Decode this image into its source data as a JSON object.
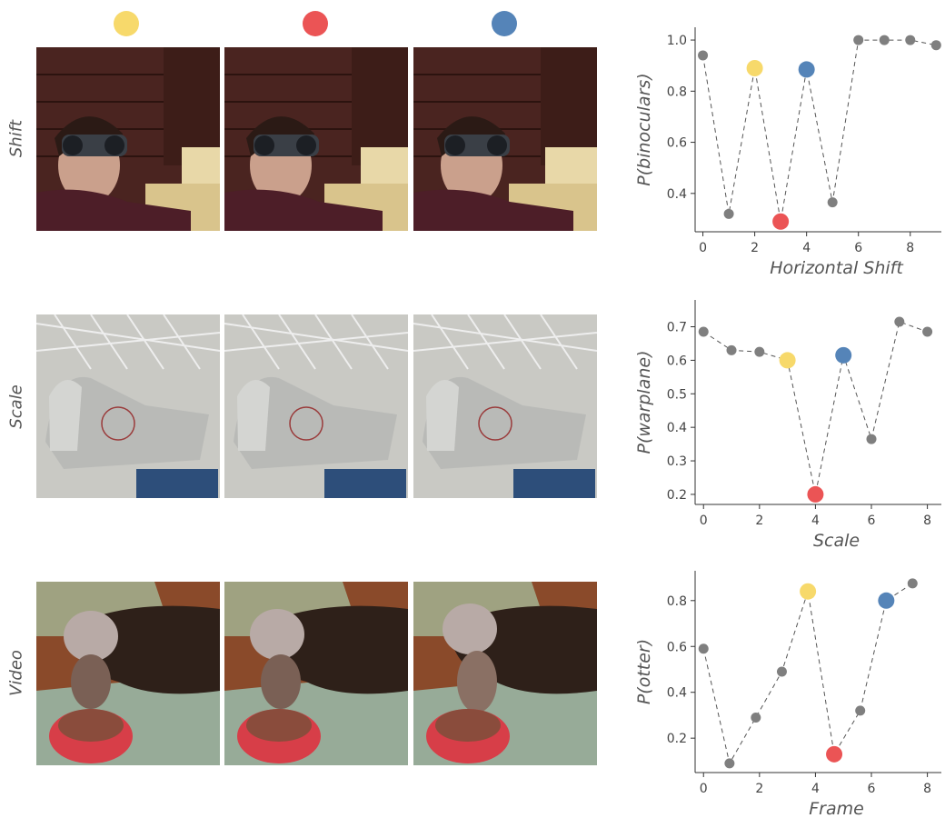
{
  "legend_colors": {
    "yellow": "#f7d96b",
    "red": "#eb5455",
    "blue": "#5584b8",
    "gray": "#7f7f7f"
  },
  "rows": [
    {
      "label": "Shift"
    },
    {
      "label": "Scale"
    },
    {
      "label": "Video"
    }
  ],
  "chart_data": [
    {
      "type": "scatter",
      "title": "",
      "xlabel": "Horizontal Shift",
      "ylabel": "P(binoculars)",
      "xlim": [
        -0.3,
        9.2
      ],
      "ylim": [
        0.25,
        1.05
      ],
      "xticks": [
        0,
        2,
        4,
        6,
        8
      ],
      "yticks": [
        0.4,
        0.6,
        0.8,
        1.0
      ],
      "ytick_labels": [
        "0.4",
        "0.6",
        "0.8",
        "1.0"
      ],
      "x": [
        0,
        1,
        2,
        3,
        4,
        5,
        6,
        7,
        8,
        9
      ],
      "y": [
        0.94,
        0.32,
        0.89,
        0.29,
        0.885,
        0.365,
        1.0,
        1.0,
        1.0,
        0.98
      ],
      "highlights": {
        "yellow": 2,
        "red": 3,
        "blue": 4
      },
      "grid": false,
      "line_style": "dashed"
    },
    {
      "type": "scatter",
      "title": "",
      "xlabel": "Scale",
      "ylabel": "P(warplane)",
      "xlim": [
        -0.3,
        8.5
      ],
      "ylim": [
        0.17,
        0.78
      ],
      "xticks": [
        0,
        2,
        4,
        6,
        8
      ],
      "yticks": [
        0.2,
        0.3,
        0.4,
        0.5,
        0.6,
        0.7
      ],
      "ytick_labels": [
        "0.2",
        "0.3",
        "0.4",
        "0.5",
        "0.6",
        "0.7"
      ],
      "x": [
        0,
        1,
        2,
        3,
        4,
        5,
        6,
        7,
        8
      ],
      "y": [
        0.685,
        0.63,
        0.625,
        0.6,
        0.2,
        0.615,
        0.365,
        0.715,
        0.685
      ],
      "highlights": {
        "yellow": 3,
        "red": 4,
        "blue": 5
      },
      "grid": false,
      "line_style": "dashed"
    },
    {
      "type": "scatter",
      "title": "",
      "xlabel": "Frame",
      "ylabel": "P(otter)",
      "xlim": [
        -0.3,
        8.5
      ],
      "ylim": [
        0.05,
        0.93
      ],
      "xticks": [
        0,
        2,
        4,
        6,
        8
      ],
      "yticks": [
        0.2,
        0.4,
        0.6,
        0.8
      ],
      "ytick_labels": [
        "0.2",
        "0.4",
        "0.6",
        "0.8"
      ],
      "x": [
        0,
        0.93,
        1.87,
        2.8,
        3.73,
        4.67,
        5.6,
        6.53,
        7.47
      ],
      "y": [
        0.59,
        0.09,
        0.29,
        0.49,
        0.84,
        0.13,
        0.32,
        0.8,
        0.875
      ],
      "highlights": {
        "yellow": 4,
        "red": 5,
        "blue": 7
      },
      "grid": false,
      "line_style": "dashed"
    }
  ]
}
